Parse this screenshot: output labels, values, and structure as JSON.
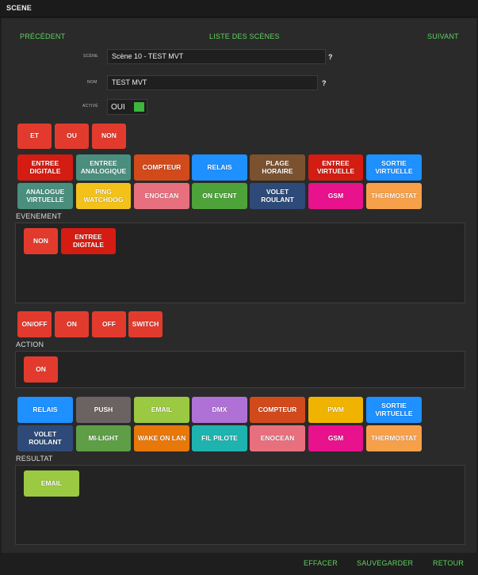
{
  "window": {
    "title": "SCENE"
  },
  "nav": {
    "prev": "PRÉCÉDENT",
    "list": "LISTE DES SCÈNES",
    "next": "SUIVANT"
  },
  "form": {
    "scene_label": "SCÈNE",
    "scene_value": "Scène 10 - TEST MVT",
    "scene_help": "?",
    "name_label": "NOM",
    "name_value": "TEST MVT",
    "name_help": "?",
    "active_label": "ACTIVÉ",
    "active_value": "OUI",
    "active_on": true
  },
  "logic_buttons": [
    "ET",
    "OU",
    "NON"
  ],
  "event_types": [
    "ENTREE DIGITALE",
    "ENTREE ANALOGIQUE",
    "COMPTEUR",
    "RELAIS",
    "PLAGE HORAIRE",
    "ENTREE VIRTUELLE",
    "SORTIE VIRTUELLE",
    "ANALOGUE VIRTUELLE",
    "PING WATCHDOG",
    "ENOCEAN",
    "ON EVENT",
    "VOLET ROULANT",
    "GSM",
    "THERMOSTAT"
  ],
  "event": {
    "label": "EVENEMENT",
    "items": [
      "NON",
      "ENTREE DIGITALE"
    ]
  },
  "action_buttons": [
    "ON/OFF",
    "ON",
    "OFF",
    "SWITCH"
  ],
  "action": {
    "label": "ACTION",
    "items": [
      "ON"
    ]
  },
  "result_types": [
    "RELAIS",
    "PUSH",
    "EMAIL",
    "DMX",
    "COMPTEUR",
    "PWM",
    "SORTIE VIRTUELLE",
    "VOLET ROULANT",
    "MI-LIGHT",
    "WAKE ON LAN",
    "FIL PILOTE",
    "ENOCEAN",
    "GSM",
    "THERMOSTAT"
  ],
  "result": {
    "label": "RESULTAT",
    "items": [
      "EMAIL"
    ]
  },
  "footer": {
    "clear": "EFFACER",
    "save": "SAUVEGARDER",
    "back": "RETOUR"
  },
  "colors": {
    "red": "#e23b2e",
    "red_dark": "#d41c12",
    "green_link": "#5fd35f",
    "teal": "#4a8f7e",
    "orange_red": "#d24a1c",
    "blue": "#1e90ff",
    "brown": "#7a5230",
    "yellow": "#f2c21a",
    "pink": "#e8707e",
    "green": "#4da23a",
    "navy": "#2e4a78",
    "magenta": "#e8128c",
    "peach": "#f7a04a",
    "gray": "#6b6262",
    "lime": "#9bc942",
    "purple": "#b071d6",
    "amber": "#f0b400",
    "mi_green": "#5e9e47",
    "orange": "#e8780a",
    "cyan": "#1fb3b0"
  }
}
